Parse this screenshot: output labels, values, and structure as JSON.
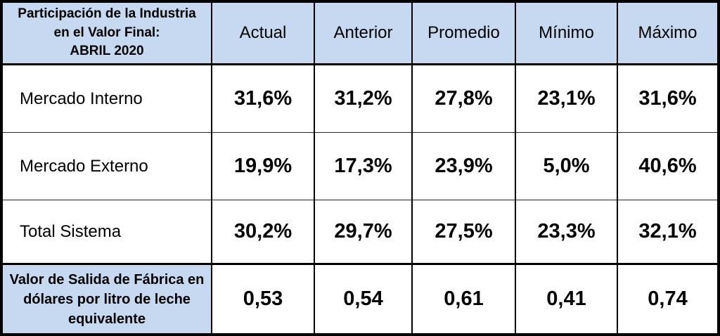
{
  "table": {
    "corner_header": {
      "line1": "Participación de la Industria",
      "line2": "en el Valor Final:",
      "line3": "ABRIL 2020"
    },
    "columns": [
      "Actual",
      "Anterior",
      "Promedio",
      "Mínimo",
      "Máximo"
    ],
    "rows": [
      {
        "label": "Mercado Interno",
        "values": [
          "31,6%",
          "31,2%",
          "27,8%",
          "23,1%",
          "31,6%"
        ]
      },
      {
        "label": "Mercado Externo",
        "values": [
          "19,9%",
          "17,3%",
          "23,9%",
          "5,0%",
          "40,6%"
        ]
      },
      {
        "label": "Total Sistema",
        "values": [
          "30,2%",
          "29,7%",
          "27,5%",
          "23,3%",
          "32,1%"
        ]
      }
    ],
    "footer": {
      "label_line1": "Valor de Salida de Fábrica en",
      "label_line2": "dólares por litro de leche",
      "label_line3": "equivalente",
      "values": [
        "0,53",
        "0,54",
        "0,61",
        "0,41",
        "0,74"
      ]
    }
  },
  "colors": {
    "header_bg": "#C6D9F1",
    "border": "#000000",
    "text": "#000000"
  },
  "chart_data": {
    "type": "table",
    "title": "Participación de la Industria en el Valor Final: ABRIL 2020",
    "columns": [
      "Actual",
      "Anterior",
      "Promedio",
      "Mínimo",
      "Máximo"
    ],
    "rows": [
      {
        "label": "Mercado Interno",
        "unit": "percent",
        "values": [
          31.6,
          31.2,
          27.8,
          23.1,
          31.6
        ]
      },
      {
        "label": "Mercado Externo",
        "unit": "percent",
        "values": [
          19.9,
          17.3,
          23.9,
          5.0,
          40.6
        ]
      },
      {
        "label": "Total Sistema",
        "unit": "percent",
        "values": [
          30.2,
          29.7,
          27.5,
          23.3,
          32.1
        ]
      },
      {
        "label": "Valor de Salida de Fábrica en dólares por litro de leche equivalente",
        "unit": "USD/liter",
        "values": [
          0.53,
          0.54,
          0.61,
          0.41,
          0.74
        ]
      }
    ],
    "layout_hints": {
      "header_fill": "#C6D9F1",
      "grid": true,
      "value_style": "bold"
    }
  }
}
